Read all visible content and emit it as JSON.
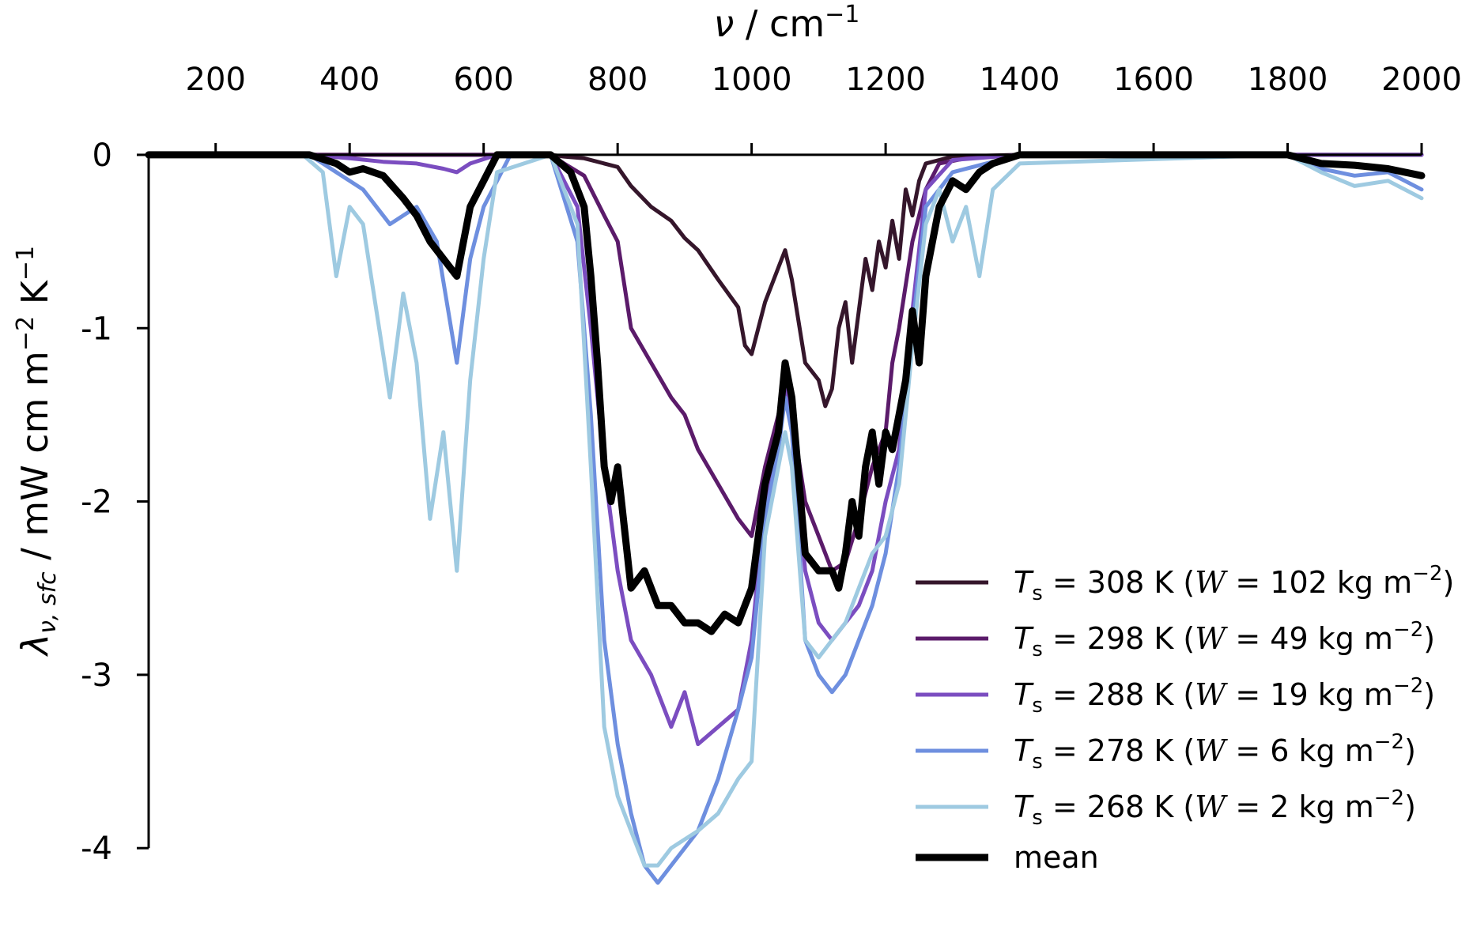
{
  "chart_data": {
    "type": "line",
    "title": "",
    "xlabel": {
      "symbol": "ν",
      "unit": "cm",
      "unit_exp": "−1"
    },
    "ylabel": {
      "symbol": "λ",
      "sub": "ν, sfc",
      "unit": "mW cm m",
      "unit_exp1": "−2",
      "unit_mid": "K",
      "unit_exp2": "−1"
    },
    "xlim": [
      100,
      2000
    ],
    "ylim": [
      -4.3,
      0.1
    ],
    "x_axis_position": "top",
    "grid": false,
    "legend_position": "bottom-right",
    "x_ticks": [
      {
        "v": 200,
        "label": "200"
      },
      {
        "v": 400,
        "label": "400"
      },
      {
        "v": 600,
        "label": "600"
      },
      {
        "v": 800,
        "label": "800"
      },
      {
        "v": 1000,
        "label": "1000"
      },
      {
        "v": 1200,
        "label": "1200"
      },
      {
        "v": 1400,
        "label": "1400"
      },
      {
        "v": 1600,
        "label": "1600"
      },
      {
        "v": 1800,
        "label": "1800"
      },
      {
        "v": 2000,
        "label": "2000"
      }
    ],
    "y_ticks": [
      {
        "v": 0,
        "label": "0"
      },
      {
        "v": -1,
        "label": "-1"
      },
      {
        "v": -2,
        "label": "-2"
      },
      {
        "v": -3,
        "label": "-3"
      },
      {
        "v": -4,
        "label": "-4"
      }
    ],
    "series": [
      {
        "name": "T_s = 308 K (W = 102 kg m^-2)",
        "legend": {
          "T": "308",
          "W": "102"
        },
        "color": "#35162b",
        "x": [
          100,
          340,
          600,
          700,
          720,
          750,
          780,
          800,
          820,
          850,
          880,
          900,
          920,
          950,
          980,
          990,
          1000,
          1020,
          1040,
          1050,
          1060,
          1080,
          1100,
          1110,
          1120,
          1130,
          1140,
          1150,
          1160,
          1170,
          1180,
          1190,
          1200,
          1210,
          1220,
          1230,
          1240,
          1250,
          1260,
          1280,
          1300,
          1400,
          2000
        ],
        "y": [
          0,
          0,
          0,
          0,
          -0.01,
          -0.02,
          -0.05,
          -0.07,
          -0.18,
          -0.3,
          -0.38,
          -0.48,
          -0.55,
          -0.72,
          -0.88,
          -1.1,
          -1.15,
          -0.85,
          -0.65,
          -0.55,
          -0.72,
          -1.2,
          -1.3,
          -1.45,
          -1.35,
          -1.0,
          -0.85,
          -1.2,
          -0.9,
          -0.6,
          -0.78,
          -0.5,
          -0.65,
          -0.38,
          -0.6,
          -0.2,
          -0.35,
          -0.15,
          -0.05,
          -0.03,
          -0.01,
          0,
          0
        ]
      },
      {
        "name": "T_s = 298 K (W = 49 kg m^-2)",
        "legend": {
          "T": "298",
          "W": "49"
        },
        "color": "#5b1b6a",
        "x": [
          100,
          600,
          700,
          720,
          750,
          780,
          800,
          820,
          850,
          880,
          900,
          920,
          950,
          980,
          1000,
          1020,
          1040,
          1050,
          1060,
          1080,
          1100,
          1120,
          1140,
          1160,
          1180,
          1200,
          1210,
          1220,
          1240,
          1260,
          1280,
          1320,
          1400,
          2000
        ],
        "y": [
          0,
          0,
          0,
          -0.05,
          -0.12,
          -0.35,
          -0.5,
          -1.0,
          -1.2,
          -1.4,
          -1.5,
          -1.7,
          -1.9,
          -2.1,
          -2.2,
          -1.8,
          -1.5,
          -1.3,
          -1.5,
          -2.0,
          -2.2,
          -2.4,
          -2.35,
          -2.1,
          -1.8,
          -1.6,
          -1.2,
          -1.0,
          -0.5,
          -0.2,
          -0.05,
          -0.02,
          0,
          0
        ]
      },
      {
        "name": "T_s = 288 K (W = 19 kg m^-2)",
        "legend": {
          "T": "288",
          "W": "19"
        },
        "color": "#7b4dc0",
        "x": [
          100,
          340,
          400,
          450,
          500,
          540,
          560,
          580,
          620,
          700,
          740,
          760,
          780,
          800,
          820,
          850,
          880,
          900,
          920,
          950,
          980,
          1000,
          1020,
          1040,
          1050,
          1060,
          1080,
          1100,
          1120,
          1140,
          1160,
          1180,
          1200,
          1220,
          1240,
          1260,
          1300,
          1400,
          2000
        ],
        "y": [
          0,
          0,
          -0.02,
          -0.04,
          -0.05,
          -0.08,
          -0.1,
          -0.05,
          0,
          0,
          -0.3,
          -1.0,
          -1.8,
          -2.4,
          -2.8,
          -3.0,
          -3.3,
          -3.1,
          -3.4,
          -3.3,
          -3.2,
          -2.8,
          -2.0,
          -1.6,
          -1.3,
          -1.6,
          -2.4,
          -2.7,
          -2.8,
          -2.7,
          -2.6,
          -2.4,
          -2.0,
          -1.7,
          -0.9,
          -0.2,
          -0.03,
          0,
          0
        ]
      },
      {
        "name": "T_s = 278 K (W = 6 kg m^-2)",
        "legend": {
          "T": "278",
          "W": "6"
        },
        "color": "#6e8fdf",
        "x": [
          100,
          340,
          380,
          420,
          460,
          500,
          530,
          560,
          580,
          600,
          640,
          700,
          740,
          760,
          780,
          800,
          820,
          840,
          860,
          880,
          900,
          920,
          950,
          980,
          1000,
          1020,
          1040,
          1050,
          1060,
          1080,
          1100,
          1120,
          1140,
          1160,
          1180,
          1200,
          1220,
          1240,
          1260,
          1300,
          1350,
          1400,
          1800,
          1850,
          1900,
          1950,
          2000
        ],
        "y": [
          0,
          0,
          -0.1,
          -0.2,
          -0.4,
          -0.3,
          -0.5,
          -1.2,
          -0.6,
          -0.3,
          0,
          0,
          -0.5,
          -1.5,
          -2.8,
          -3.4,
          -3.8,
          -4.1,
          -4.2,
          -4.1,
          -4.0,
          -3.9,
          -3.6,
          -3.2,
          -2.9,
          -2.1,
          -1.7,
          -1.4,
          -1.6,
          -2.8,
          -3.0,
          -3.1,
          -3.0,
          -2.8,
          -2.6,
          -2.3,
          -1.8,
          -1.0,
          -0.3,
          -0.1,
          -0.05,
          0,
          0,
          -0.08,
          -0.12,
          -0.1,
          -0.2
        ]
      },
      {
        "name": "T_s = 268 K (W = 2 kg m^-2)",
        "legend": {
          "T": "268",
          "W": "2"
        },
        "color": "#9ecae1",
        "x": [
          100,
          330,
          360,
          380,
          400,
          420,
          440,
          460,
          480,
          500,
          520,
          540,
          560,
          580,
          600,
          620,
          700,
          740,
          760,
          780,
          800,
          820,
          840,
          860,
          880,
          900,
          920,
          950,
          980,
          1000,
          1020,
          1040,
          1050,
          1060,
          1080,
          1100,
          1120,
          1140,
          1160,
          1180,
          1200,
          1220,
          1240,
          1260,
          1280,
          1300,
          1320,
          1340,
          1360,
          1400,
          1800,
          1850,
          1900,
          1950,
          2000
        ],
        "y": [
          0,
          0,
          -0.1,
          -0.7,
          -0.3,
          -0.4,
          -0.9,
          -1.4,
          -0.8,
          -1.2,
          -2.1,
          -1.6,
          -2.4,
          -1.3,
          -0.6,
          -0.1,
          0,
          -0.4,
          -1.8,
          -3.3,
          -3.7,
          -3.9,
          -4.1,
          -4.1,
          -4.0,
          -3.95,
          -3.9,
          -3.8,
          -3.6,
          -3.5,
          -2.2,
          -1.8,
          -1.6,
          -1.8,
          -2.8,
          -2.9,
          -2.8,
          -2.7,
          -2.5,
          -2.3,
          -2.2,
          -1.9,
          -1.1,
          -0.4,
          -0.2,
          -0.5,
          -0.3,
          -0.7,
          -0.2,
          -0.05,
          0,
          -0.1,
          -0.18,
          -0.15,
          -0.25
        ]
      },
      {
        "name": "mean",
        "legend": {
          "label": "mean"
        },
        "color": "#000000",
        "x": [
          100,
          340,
          380,
          400,
          420,
          450,
          480,
          500,
          520,
          540,
          560,
          580,
          600,
          620,
          700,
          730,
          750,
          760,
          770,
          780,
          790,
          800,
          820,
          840,
          860,
          880,
          900,
          920,
          940,
          960,
          980,
          1000,
          1020,
          1040,
          1050,
          1060,
          1080,
          1100,
          1120,
          1130,
          1140,
          1150,
          1160,
          1170,
          1180,
          1190,
          1200,
          1210,
          1220,
          1230,
          1240,
          1250,
          1260,
          1280,
          1300,
          1320,
          1340,
          1360,
          1400,
          1800,
          1850,
          1900,
          1950,
          2000
        ],
        "y": [
          0,
          0,
          -0.05,
          -0.1,
          -0.08,
          -0.12,
          -0.25,
          -0.35,
          -0.5,
          -0.6,
          -0.7,
          -0.3,
          -0.15,
          0,
          0,
          -0.1,
          -0.3,
          -0.7,
          -1.2,
          -1.8,
          -2.0,
          -1.8,
          -2.5,
          -2.4,
          -2.6,
          -2.6,
          -2.7,
          -2.7,
          -2.75,
          -2.65,
          -2.7,
          -2.5,
          -1.9,
          -1.6,
          -1.2,
          -1.4,
          -2.3,
          -2.4,
          -2.4,
          -2.5,
          -2.3,
          -2.0,
          -2.2,
          -1.8,
          -1.6,
          -1.9,
          -1.6,
          -1.7,
          -1.5,
          -1.3,
          -0.9,
          -1.2,
          -0.7,
          -0.3,
          -0.15,
          -0.2,
          -0.1,
          -0.05,
          0,
          0,
          -0.05,
          -0.06,
          -0.08,
          -0.12
        ]
      }
    ]
  }
}
